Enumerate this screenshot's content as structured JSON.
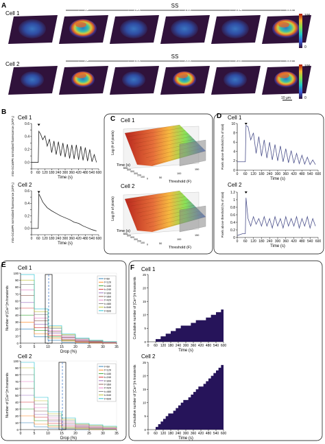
{
  "colors": {
    "navy": "#2e2a7a",
    "line": "#1c1c1c",
    "dark": "#26145a",
    "warm": "#e8a12a",
    "trace2": "#4a4f8a"
  },
  "panel_labels": {
    "A": "A",
    "B": "B",
    "C": "C",
    "D": "D",
    "E": "E",
    "F": "F"
  },
  "panelA": {
    "ss_label": "SS",
    "cells": [
      {
        "label": "Cell 1",
        "times": [
          "t = 1 s",
          "t = 65 s",
          "t = 152 s",
          "t = 160 s",
          "t = 197 s",
          "t = 206 s"
        ]
      },
      {
        "label": "Cell 2",
        "times": [
          "t = 1 s",
          "t = 65 s",
          "t = 192 s",
          "t = 202 s",
          "t = 346 s",
          "t = 361 s"
        ]
      }
    ],
    "colorbar": {
      "max": "100",
      "min": "0"
    },
    "scale_bar": "10 µm"
  },
  "panelB": {
    "cells": [
      {
        "label": "Cell 1",
        "ylabel": "mito-GCaMP6 normalized fluorescence (ΔF/F₀)",
        "yticks": [
          "0.6",
          "0.5",
          "0.4",
          "0.3",
          "0.2",
          "0.1",
          "0.0",
          "-0.1"
        ]
      },
      {
        "label": "Cell 2",
        "ylabel": "mito-GCaMP6 normalized fluorescence (ΔF/F₀)",
        "yticks": [
          "0.6",
          "0.5",
          "0.4",
          "0.3",
          "0.2",
          "0.1",
          "0.0",
          "-0.1"
        ]
      }
    ],
    "xlabel": "Time (s)",
    "xticks": [
      "0",
      "60",
      "120",
      "180",
      "240",
      "300",
      "360",
      "420",
      "480",
      "540",
      "600"
    ]
  },
  "panelC": {
    "cells": [
      {
        "label": "Cell 1"
      },
      {
        "label": "Cell 2"
      }
    ],
    "zlabel": "Log (# of pixels)",
    "time_label": "Time (s)",
    "threshold_label": "Threshold (F)",
    "time_ticks": [
      "600",
      "500",
      "400",
      "300",
      "200",
      "100",
      "0"
    ],
    "threshold_ticks": [
      "50",
      "100",
      "150"
    ]
  },
  "panelD": {
    "cells": [
      {
        "label": "Cell 1",
        "ylabel": "Pixels above threshold (% of total)",
        "yticks": [
          "10",
          "8",
          "6",
          "4",
          "2",
          "0"
        ]
      },
      {
        "label": "Cell 2",
        "ylabel": "Pixels above threshold (% of total)",
        "yticks": [
          "1.2",
          "1",
          "0.8",
          "0.6",
          "0.4",
          "0.2",
          "0"
        ]
      }
    ],
    "xlabel": "Time (s)",
    "xticks": [
      "0",
      "60",
      "120",
      "180",
      "240",
      "300",
      "360",
      "420",
      "480",
      "540",
      "600"
    ]
  },
  "panelE": {
    "cells": [
      {
        "label": "Cell 1",
        "ylabel": "Number of [Ca²⁺]m transients",
        "yticks": [
          "0",
          "10",
          "20",
          "30",
          "40",
          "50",
          "60",
          "70",
          "80",
          "90",
          "100"
        ]
      },
      {
        "label": "Cell 2",
        "ylabel": "Number of [Ca²⁺]m transients",
        "yticks": [
          "0",
          "10",
          "20",
          "30",
          "40",
          "50",
          "60",
          "70",
          "80",
          "90",
          "100"
        ]
      }
    ],
    "xlabel": "Drop (%)",
    "xticks": [
      "0",
      "5",
      "10",
      "15",
      "20",
      "25",
      "30",
      "35"
    ],
    "legend": [
      "t=60",
      "t=120",
      "t=180",
      "t=240",
      "t=300",
      "t=360",
      "t=420",
      "t=480",
      "t=540",
      "t=600"
    ],
    "legend_colors": [
      "#1f77b4",
      "#ff7f0e",
      "#2ca02c",
      "#d62728",
      "#9467bd",
      "#8c564b",
      "#e377c2",
      "#7f7f7f",
      "#bcbd22",
      "#17becf"
    ]
  },
  "panelF": {
    "cells": [
      {
        "label": "Cell 1",
        "ylabel": "Cumulative number of [Ca²⁺]m transients",
        "yticks": [
          "0",
          "5",
          "10",
          "15",
          "20",
          "25"
        ]
      },
      {
        "label": "Cell 2",
        "ylabel": "Cumulative number of [Ca²⁺]m transients",
        "yticks": [
          "0",
          "5",
          "10",
          "15",
          "20",
          "25"
        ]
      }
    ],
    "xlabel": "Time (s)",
    "xticks": [
      "0",
      "60",
      "120",
      "180",
      "240",
      "300",
      "360",
      "420",
      "480",
      "540",
      "600"
    ]
  },
  "chart_data": [
    {
      "type": "line",
      "xlabel": "Time (s)",
      "ylabel": "mito-GCaMP6 normalized fluorescence (ΔF/F₀)",
      "xlim": [
        0,
        600
      ],
      "ylim": [
        -0.1,
        0.6
      ],
      "series": [
        {
          "x": [
            0,
            60,
            65,
            80,
            100,
            120,
            140,
            160,
            180,
            200,
            220,
            240,
            260,
            280,
            300,
            320,
            340,
            360,
            380,
            400,
            420,
            440,
            460,
            480,
            500,
            520,
            540,
            560,
            580
          ],
          "y": [
            0.0,
            0.0,
            0.48,
            0.44,
            0.35,
            0.41,
            0.25,
            0.36,
            0.15,
            0.33,
            0.12,
            0.32,
            0.1,
            0.3,
            0.08,
            0.28,
            0.06,
            0.27,
            0.05,
            0.27,
            0.04,
            0.25,
            0.03,
            0.23,
            0.02,
            0.2,
            0.01,
            0.12,
            0.0
          ]
        }
      ]
    },
    {
      "type": "line",
      "xlabel": "Time (s)",
      "ylabel": "mito-GCaMP6 normalized fluorescence (ΔF/F₀)",
      "xlim": [
        0,
        600
      ],
      "ylim": [
        -0.1,
        0.6
      ],
      "series": [
        {
          "x": [
            0,
            60,
            65,
            80,
            100,
            140,
            180,
            220,
            260,
            300,
            340,
            380,
            420,
            460,
            500,
            540,
            580
          ],
          "y": [
            0.0,
            0.0,
            0.55,
            0.5,
            0.42,
            0.33,
            0.28,
            0.24,
            0.2,
            0.17,
            0.14,
            0.1,
            0.08,
            0.04,
            0.01,
            -0.02,
            -0.04
          ]
        }
      ]
    },
    {
      "type": "line",
      "xlabel": "Time (s)",
      "ylabel": "Pixels above threshold (% of total)",
      "xlim": [
        0,
        600
      ],
      "ylim": [
        0,
        10
      ],
      "series": [
        {
          "x": [
            0,
            60,
            65,
            80,
            100,
            120,
            140,
            160,
            180,
            200,
            220,
            240,
            260,
            280,
            300,
            320,
            340,
            360,
            380,
            400,
            420,
            440,
            460,
            480,
            500,
            520,
            540,
            560,
            580
          ],
          "y": [
            1.8,
            1.8,
            9.6,
            9.3,
            6.5,
            8.0,
            3.6,
            7.2,
            3.0,
            6.5,
            2.6,
            6.0,
            2.2,
            5.5,
            2.0,
            5.2,
            1.8,
            4.6,
            1.6,
            4.2,
            1.5,
            3.6,
            1.4,
            3.2,
            1.3,
            2.8,
            1.2,
            2.2,
            1.2
          ]
        }
      ]
    },
    {
      "type": "line",
      "xlabel": "Time (s)",
      "ylabel": "Pixels above threshold (% of total)",
      "xlim": [
        0,
        600
      ],
      "ylim": [
        0,
        1.2
      ],
      "series": [
        {
          "x": [
            0,
            40,
            60,
            65,
            80,
            100,
            120,
            140,
            160,
            180,
            200,
            220,
            240,
            260,
            280,
            300,
            320,
            340,
            360,
            380,
            400,
            420,
            440,
            460,
            480,
            500,
            520,
            540,
            560,
            580
          ],
          "y": [
            0.05,
            0.1,
            0.1,
            1.05,
            0.5,
            0.3,
            0.55,
            0.35,
            0.5,
            0.3,
            0.55,
            0.3,
            0.5,
            0.25,
            0.55,
            0.3,
            0.5,
            0.25,
            0.55,
            0.3,
            0.5,
            0.3,
            0.55,
            0.25,
            0.5,
            0.3,
            0.55,
            0.25,
            0.5,
            0.3
          ]
        }
      ]
    },
    {
      "type": "line",
      "xlabel": "Drop (%)",
      "ylabel": "Number of [Ca²⁺]m transients",
      "xlim": [
        0,
        35
      ],
      "ylim": [
        0,
        100
      ],
      "series": [
        {
          "name": "t=60",
          "values": [
            20,
            9,
            4,
            1,
            0,
            0,
            0,
            0
          ]
        },
        {
          "name": "t=120",
          "values": [
            30,
            13,
            7,
            3,
            1,
            0,
            0,
            0
          ]
        },
        {
          "name": "t=180",
          "values": [
            40,
            18,
            9,
            4,
            2,
            1,
            0,
            0
          ]
        },
        {
          "name": "t=240",
          "values": [
            50,
            22,
            11,
            5,
            2,
            1,
            0,
            0
          ]
        },
        {
          "name": "t=300",
          "values": [
            58,
            27,
            14,
            7,
            3,
            2,
            1,
            0
          ]
        },
        {
          "name": "t=360",
          "values": [
            68,
            32,
            16,
            8,
            4,
            2,
            1,
            0
          ]
        },
        {
          "name": "t=420",
          "values": [
            76,
            36,
            18,
            9,
            5,
            3,
            1,
            0
          ]
        },
        {
          "name": "t=480",
          "values": [
            84,
            41,
            21,
            11,
            6,
            3,
            2,
            1
          ]
        },
        {
          "name": "t=540",
          "values": [
            90,
            45,
            23,
            12,
            7,
            4,
            2,
            1
          ]
        },
        {
          "name": "t=600",
          "values": [
            98,
            49,
            25,
            13,
            7,
            4,
            2,
            1
          ]
        }
      ],
      "x": [
        0,
        5,
        10,
        15,
        20,
        25,
        30,
        35
      ]
    },
    {
      "type": "line",
      "xlabel": "Drop (%)",
      "ylabel": "Number of [Ca²⁺]m transients",
      "xlim": [
        0,
        35
      ],
      "ylim": [
        0,
        100
      ],
      "series": [
        {
          "name": "t=60",
          "values": [
            10,
            4,
            2,
            1,
            0,
            0,
            0,
            0
          ]
        },
        {
          "name": "t=120",
          "values": [
            20,
            8,
            4,
            2,
            1,
            0,
            0,
            0
          ]
        },
        {
          "name": "t=180",
          "values": [
            30,
            13,
            6,
            3,
            2,
            1,
            0,
            0
          ]
        },
        {
          "name": "t=240",
          "values": [
            40,
            18,
            9,
            5,
            3,
            2,
            1,
            0
          ]
        },
        {
          "name": "t=300",
          "values": [
            50,
            22,
            12,
            7,
            4,
            2,
            1,
            0
          ]
        },
        {
          "name": "t=360",
          "values": [
            60,
            27,
            14,
            9,
            5,
            3,
            2,
            1
          ]
        },
        {
          "name": "t=420",
          "values": [
            70,
            32,
            17,
            11,
            6,
            4,
            2,
            1
          ]
        },
        {
          "name": "t=480",
          "values": [
            80,
            37,
            20,
            13,
            7,
            5,
            3,
            2
          ]
        },
        {
          "name": "t=540",
          "values": [
            90,
            42,
            23,
            15,
            8,
            6,
            4,
            2
          ]
        },
        {
          "name": "t=600",
          "values": [
            98,
            47,
            26,
            17,
            9,
            7,
            5,
            3
          ]
        }
      ],
      "x": [
        0,
        5,
        10,
        15,
        20,
        25,
        30,
        35
      ]
    },
    {
      "type": "area",
      "xlabel": "Time (s)",
      "ylabel": "Cumulative number of [Ca²⁺]m transients",
      "xlim": [
        0,
        600
      ],
      "ylim": [
        0,
        25
      ],
      "series": [
        {
          "x": [
            60,
            100,
            140,
            180,
            220,
            260,
            300,
            340,
            380,
            420,
            460,
            500,
            540,
            580,
            600
          ],
          "y": [
            1,
            2,
            3,
            4,
            5,
            6,
            6,
            7,
            8,
            8,
            9,
            10,
            11,
            12,
            12
          ]
        }
      ]
    },
    {
      "type": "area",
      "xlabel": "Time (s)",
      "ylabel": "Cumulative number of [Ca²⁺]m transients",
      "xlim": [
        0,
        600
      ],
      "ylim": [
        0,
        25
      ],
      "series": [
        {
          "x": [
            60,
            80,
            100,
            120,
            140,
            160,
            180,
            200,
            220,
            240,
            260,
            280,
            300,
            320,
            340,
            360,
            380,
            400,
            420,
            440,
            460,
            480,
            500,
            520,
            540,
            560,
            580,
            600
          ],
          "y": [
            1,
            2,
            3,
            4,
            5,
            6,
            6,
            7,
            8,
            9,
            10,
            11,
            11,
            12,
            13,
            14,
            15,
            16,
            16,
            17,
            18,
            19,
            20,
            21,
            22,
            23,
            24,
            25
          ]
        }
      ]
    }
  ]
}
